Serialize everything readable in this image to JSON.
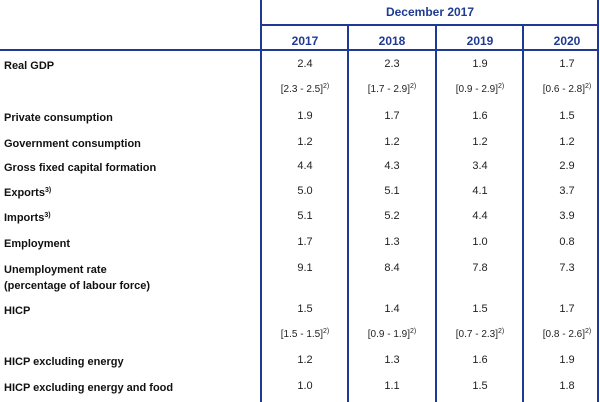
{
  "header": {
    "title": "December 2017",
    "years": [
      "2017",
      "2018",
      "2019",
      "2020"
    ]
  },
  "rows": [
    {
      "label": "Real GDP",
      "values": [
        "2.4",
        "2.3",
        "1.9",
        "1.7"
      ]
    },
    {
      "label": "",
      "ranges": [
        "[2.3 - 2.5]",
        "[1.7 - 2.9]",
        "[0.9 - 2.9]",
        "[0.6 - 2.8]"
      ],
      "note": "2)"
    },
    {
      "label": "Private consumption",
      "values": [
        "1.9",
        "1.7",
        "1.6",
        "1.5"
      ]
    },
    {
      "label": "Government consumption",
      "values": [
        "1.2",
        "1.2",
        "1.2",
        "1.2"
      ]
    },
    {
      "label": "Gross fixed capital formation",
      "values": [
        "4.4",
        "4.3",
        "3.4",
        "2.9"
      ]
    },
    {
      "label": "Exports",
      "label_note": "3)",
      "values": [
        "5.0",
        "5.1",
        "4.1",
        "3.7"
      ]
    },
    {
      "label": "Imports",
      "label_note": "3)",
      "values": [
        "5.1",
        "5.2",
        "4.4",
        "3.9"
      ]
    },
    {
      "label": "Employment",
      "values": [
        "1.7",
        "1.3",
        "1.0",
        "0.8"
      ]
    },
    {
      "label": "Unemployment rate",
      "label_line2": "(percentage of labour force)",
      "values": [
        "9.1",
        "8.4",
        "7.8",
        "7.3"
      ]
    },
    {
      "label": "HICP",
      "values": [
        "1.5",
        "1.4",
        "1.5",
        "1.7"
      ]
    },
    {
      "label": "",
      "ranges": [
        "[1.5 - 1.5]",
        "[0.9 - 1.9]",
        "[0.7 - 2.3]",
        "[0.8 - 2.6]"
      ],
      "note": "2)"
    },
    {
      "label": "HICP excluding energy",
      "values": [
        "1.2",
        "1.3",
        "1.6",
        "1.9"
      ]
    },
    {
      "label": "HICP excluding energy and food",
      "values": [
        "1.0",
        "1.1",
        "1.5",
        "1.8"
      ]
    }
  ]
}
